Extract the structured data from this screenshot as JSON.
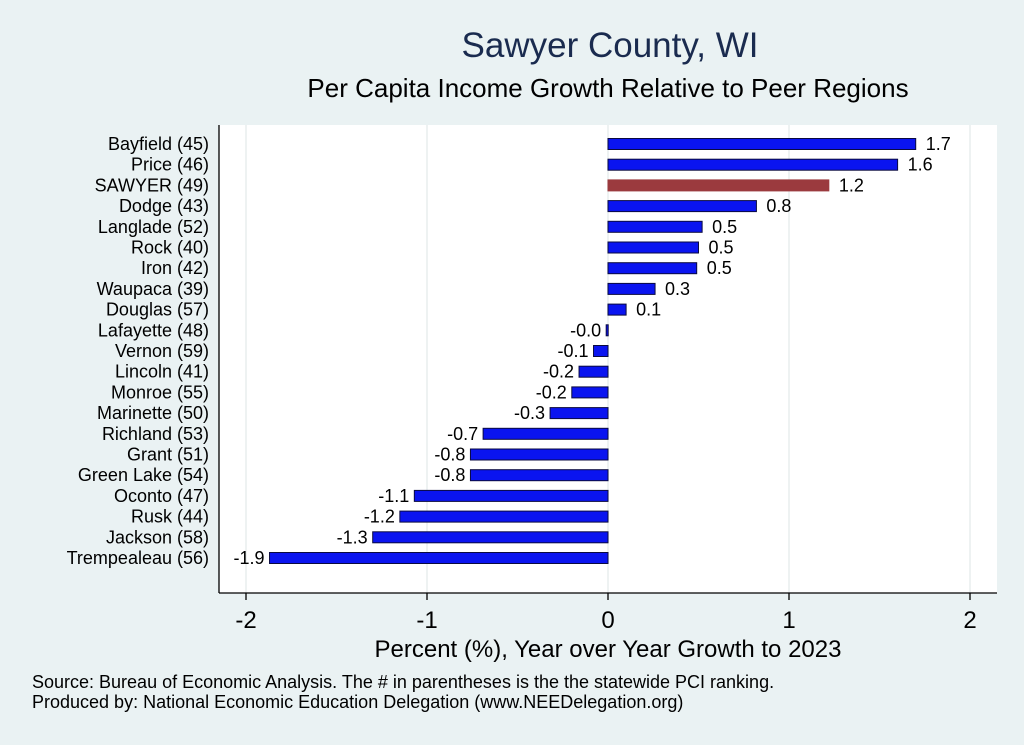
{
  "chart_data": {
    "type": "bar",
    "orientation": "horizontal",
    "title": "Sawyer County, WI",
    "subtitle": "Per Capita Income Growth Relative to Peer Regions",
    "xlabel": "Percent (%), Year over Year Growth to 2023",
    "ylabel": "",
    "xlim": [
      -2.15,
      2.15
    ],
    "xticks": [
      "-2",
      "-1",
      "0",
      "1",
      "2"
    ],
    "xtick_values": [
      -2,
      -1,
      0,
      1,
      2
    ],
    "grid": true,
    "categories": [
      "Bayfield (45)",
      "Price (46)",
      "SAWYER (49)",
      "Dodge (43)",
      "Langlade (52)",
      "Rock (40)",
      "Iron (42)",
      "Waupaca (39)",
      "Douglas (57)",
      "Lafayette (48)",
      "Vernon (59)",
      "Lincoln (41)",
      "Monroe (55)",
      "Marinette (50)",
      "Richland (53)",
      "Grant (51)",
      "Green Lake (54)",
      "Oconto (47)",
      "Rusk (44)",
      "Jackson (58)",
      "Trempealeau (56)"
    ],
    "values": [
      1.7,
      1.6,
      1.22,
      0.82,
      0.52,
      0.5,
      0.49,
      0.26,
      0.1,
      -0.01,
      -0.08,
      -0.16,
      -0.2,
      -0.32,
      -0.69,
      -0.76,
      -0.76,
      -1.07,
      -1.15,
      -1.3,
      -1.87
    ],
    "value_labels": [
      "1.7",
      "1.6",
      "1.2",
      "0.8",
      "0.5",
      "0.5",
      "0.5",
      "0.3",
      "0.1",
      "-0.0",
      "-0.1",
      "-0.2",
      "-0.2",
      "-0.3",
      "-0.7",
      "-0.8",
      "-0.8",
      "-1.1",
      "-1.2",
      "-1.3",
      "-1.9"
    ],
    "highlight_category": "SAWYER (49)",
    "colors": {
      "bar": "#0a14f0",
      "bar_border": "#0a0a40",
      "highlight": "#9b3a3e",
      "plot_bg": "#ffffff",
      "page_bg": "#eaf2f3",
      "title": "#1a2b4f",
      "grid": "#e8eeee"
    }
  },
  "footer": {
    "source": "Source: Bureau of Economic Analysis. The # in parentheses is the the statewide PCI ranking.",
    "producer": "Produced by: National Economic Education Delegation (www.NEEDelegation.org)"
  }
}
